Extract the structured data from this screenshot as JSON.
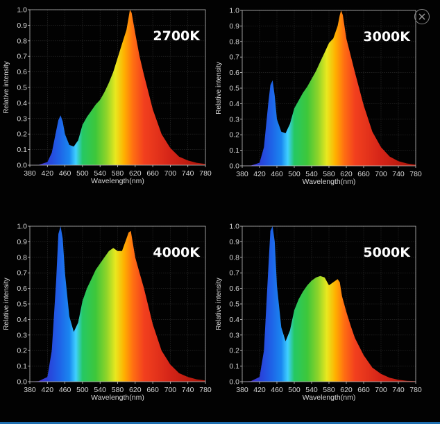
{
  "close_button": {
    "icon": "close-icon"
  },
  "chart_data": [
    {
      "type": "area",
      "annotation": "2700K",
      "xlabel": "Wavelength(nm)",
      "ylabel": "Relative intensity",
      "xlim": [
        380,
        780
      ],
      "ylim": [
        0,
        1.0
      ],
      "xticks": [
        "380",
        "420",
        "460",
        "500",
        "540",
        "580",
        "620",
        "660",
        "700",
        "740",
        "780"
      ],
      "yticks": [
        "0.0",
        "0.1",
        "0.2",
        "0.3",
        "0.4",
        "0.5",
        "0.6",
        "0.7",
        "0.8",
        "0.9",
        "1.0"
      ],
      "grid": true,
      "series": [
        {
          "x": [
            380,
            400,
            420,
            430,
            440,
            445,
            450,
            455,
            460,
            470,
            480,
            490,
            500,
            510,
            520,
            530,
            540,
            550,
            560,
            570,
            580,
            590,
            600,
            605,
            608,
            612,
            620,
            630,
            640,
            660,
            680,
            700,
            720,
            740,
            760,
            780
          ],
          "values": [
            0,
            0.002,
            0.02,
            0.08,
            0.22,
            0.29,
            0.32,
            0.28,
            0.2,
            0.13,
            0.12,
            0.16,
            0.26,
            0.31,
            0.35,
            0.39,
            0.42,
            0.47,
            0.53,
            0.6,
            0.69,
            0.78,
            0.87,
            0.95,
            1.0,
            0.98,
            0.85,
            0.7,
            0.58,
            0.36,
            0.2,
            0.11,
            0.055,
            0.03,
            0.015,
            0.008
          ]
        }
      ]
    },
    {
      "type": "area",
      "annotation": "3000K",
      "xlabel": "Wavelength(nm)",
      "ylabel": "Relative intensity",
      "xlim": [
        380,
        780
      ],
      "ylim": [
        0,
        1.0
      ],
      "xticks": [
        "380",
        "420",
        "460",
        "500",
        "540",
        "580",
        "620",
        "660",
        "700",
        "740",
        "780"
      ],
      "yticks": [
        "0.0",
        "0.1",
        "0.2",
        "0.3",
        "0.4",
        "0.5",
        "0.6",
        "0.7",
        "0.8",
        "0.9",
        "1.0"
      ],
      "grid": true,
      "series": [
        {
          "x": [
            380,
            400,
            420,
            430,
            440,
            445,
            450,
            455,
            460,
            470,
            480,
            490,
            500,
            510,
            520,
            530,
            540,
            550,
            560,
            570,
            580,
            590,
            600,
            605,
            608,
            612,
            620,
            630,
            640,
            660,
            680,
            700,
            720,
            740,
            760,
            780
          ],
          "values": [
            0,
            0.002,
            0.02,
            0.12,
            0.4,
            0.52,
            0.55,
            0.45,
            0.3,
            0.22,
            0.21,
            0.27,
            0.37,
            0.42,
            0.47,
            0.51,
            0.56,
            0.61,
            0.67,
            0.73,
            0.79,
            0.82,
            0.9,
            0.97,
            1.0,
            0.97,
            0.82,
            0.71,
            0.6,
            0.39,
            0.22,
            0.12,
            0.06,
            0.03,
            0.015,
            0.008
          ]
        }
      ]
    },
    {
      "type": "area",
      "annotation": "4000K",
      "xlabel": "Wavelength(nm)",
      "ylabel": "Relative intensity",
      "xlim": [
        380,
        780
      ],
      "ylim": [
        0,
        1.0
      ],
      "xticks": [
        "380",
        "420",
        "460",
        "500",
        "540",
        "580",
        "620",
        "660",
        "700",
        "740",
        "780"
      ],
      "yticks": [
        "0.0",
        "0.1",
        "0.2",
        "0.3",
        "0.4",
        "0.5",
        "0.6",
        "0.7",
        "0.8",
        "0.9",
        "1.0"
      ],
      "grid": true,
      "series": [
        {
          "x": [
            380,
            400,
            420,
            430,
            440,
            445,
            450,
            455,
            460,
            470,
            480,
            490,
            500,
            510,
            520,
            530,
            540,
            550,
            560,
            570,
            580,
            590,
            600,
            605,
            610,
            620,
            630,
            640,
            660,
            680,
            700,
            720,
            740,
            760,
            780
          ],
          "values": [
            0,
            0.003,
            0.03,
            0.2,
            0.65,
            0.95,
            1.0,
            0.92,
            0.7,
            0.42,
            0.32,
            0.38,
            0.52,
            0.6,
            0.66,
            0.72,
            0.76,
            0.8,
            0.84,
            0.86,
            0.84,
            0.84,
            0.92,
            0.96,
            0.97,
            0.8,
            0.7,
            0.6,
            0.37,
            0.2,
            0.11,
            0.055,
            0.03,
            0.015,
            0.008
          ]
        }
      ]
    },
    {
      "type": "area",
      "annotation": "5000K",
      "xlabel": "Wavelength(nm)",
      "ylabel": "Relative intensity",
      "xlim": [
        380,
        780
      ],
      "ylim": [
        0,
        1.0
      ],
      "xticks": [
        "380",
        "420",
        "460",
        "500",
        "540",
        "580",
        "620",
        "660",
        "700",
        "740",
        "780"
      ],
      "yticks": [
        "0.0",
        "0.1",
        "0.2",
        "0.3",
        "0.4",
        "0.5",
        "0.6",
        "0.7",
        "0.8",
        "0.9",
        "1.0"
      ],
      "grid": true,
      "series": [
        {
          "x": [
            380,
            400,
            420,
            430,
            440,
            445,
            450,
            455,
            460,
            470,
            480,
            490,
            500,
            510,
            520,
            530,
            540,
            550,
            560,
            570,
            580,
            590,
            600,
            605,
            610,
            620,
            630,
            640,
            660,
            680,
            700,
            720,
            740,
            760,
            780
          ],
          "values": [
            0,
            0.003,
            0.03,
            0.2,
            0.72,
            0.97,
            1.0,
            0.9,
            0.62,
            0.35,
            0.26,
            0.33,
            0.46,
            0.53,
            0.58,
            0.62,
            0.65,
            0.67,
            0.68,
            0.67,
            0.62,
            0.64,
            0.66,
            0.64,
            0.55,
            0.45,
            0.36,
            0.28,
            0.17,
            0.09,
            0.05,
            0.025,
            0.012,
            0.006,
            0.003
          ]
        }
      ]
    }
  ]
}
